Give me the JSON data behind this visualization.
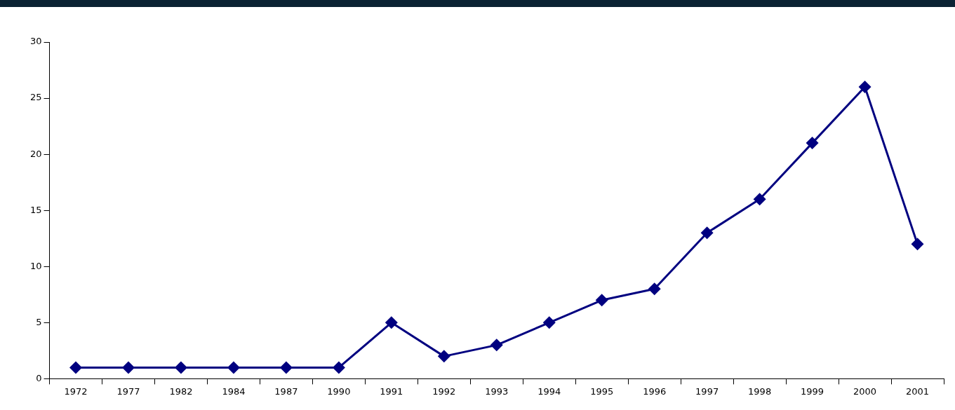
{
  "chart_data": {
    "type": "line",
    "categories": [
      "1972",
      "1977",
      "1982",
      "1984",
      "1987",
      "1990",
      "1991",
      "1992",
      "1993",
      "1994",
      "1995",
      "1996",
      "1997",
      "1998",
      "1999",
      "2000",
      "2001"
    ],
    "series": [
      {
        "color": "#000080",
        "values": [
          1,
          1,
          1,
          1,
          1,
          1,
          5,
          2,
          3,
          5,
          7,
          8,
          13,
          16,
          21,
          26,
          12
        ]
      }
    ],
    "ylim": [
      0,
      30
    ],
    "yticks": [
      0,
      5,
      10,
      15,
      20,
      25,
      30
    ],
    "grid": false,
    "legend": false,
    "marker": "diamond",
    "line_style": "solid"
  }
}
